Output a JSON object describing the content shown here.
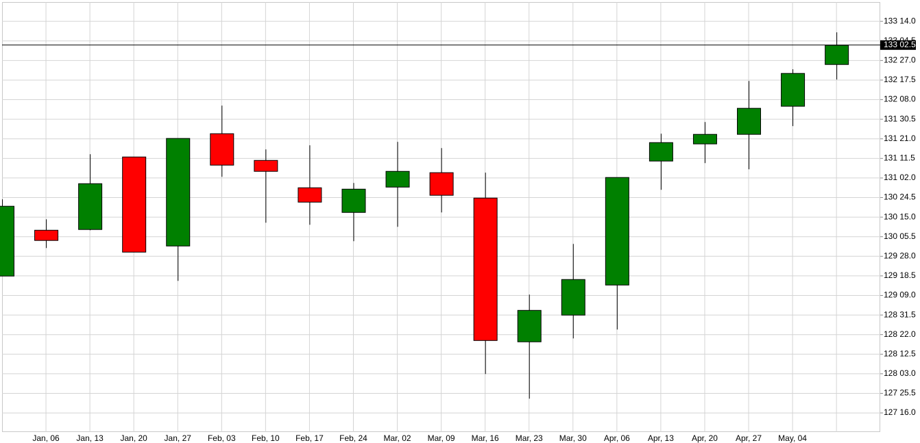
{
  "chart_data": {
    "type": "candlestick",
    "categories": [
      null,
      "Jan, 06",
      "Jan, 13",
      "Jan, 20",
      "Jan, 27",
      "Feb, 03",
      "Feb, 10",
      "Feb, 17",
      "Feb, 24",
      "Mar, 02",
      "Mar, 09",
      "Mar, 16",
      "Mar, 23",
      "Mar, 30",
      "Apr, 06",
      "Apr, 13",
      "Apr, 20",
      "Apr, 27",
      "May, 04",
      null
    ],
    "open": [
      129.575,
      130.27,
      130.281,
      131.381,
      130.031,
      131.734,
      131.329,
      130.914,
      130.54,
      130.924,
      131.143,
      130.758,
      128.578,
      128.983,
      129.439,
      131.319,
      131.579,
      131.724,
      132.15,
      132.783
    ],
    "high": [
      130.738,
      130.436,
      131.423,
      131.381,
      131.662,
      132.16,
      131.496,
      131.558,
      130.987,
      131.61,
      131.516,
      131.143,
      129.294,
      130.063,
      131.07,
      131.734,
      131.911,
      132.534,
      132.711,
      133.271
    ],
    "low": [
      129.575,
      130.0,
      130.27,
      129.938,
      129.502,
      131.08,
      130.384,
      130.353,
      130.104,
      130.322,
      130.54,
      128.09,
      127.716,
      128.63,
      128.765,
      130.883,
      131.288,
      131.194,
      131.849,
      132.555
    ],
    "close": [
      130.634,
      130.115,
      130.976,
      129.938,
      131.662,
      131.257,
      131.163,
      130.696,
      130.893,
      131.163,
      130.8,
      128.598,
      129.055,
      129.523,
      131.07,
      131.599,
      131.724,
      132.119,
      132.648,
      133.074
    ],
    "up_color": "#008000",
    "down_color": "#ff0000",
    "ylim": [
      127.21,
      133.73
    ],
    "yticks": [
      {
        "value": 133.4375,
        "label": "133 14.0"
      },
      {
        "value": 133.140625,
        "label": "133 04.5"
      },
      {
        "value": 132.84375,
        "label": "132 27.0"
      },
      {
        "value": 132.546875,
        "label": "132 17.5"
      },
      {
        "value": 132.25,
        "label": "132 08.0"
      },
      {
        "value": 131.953125,
        "label": "131 30.5"
      },
      {
        "value": 131.65625,
        "label": "131 21.0"
      },
      {
        "value": 131.359375,
        "label": "131 11.5"
      },
      {
        "value": 131.0625,
        "label": "131 02.0"
      },
      {
        "value": 130.765625,
        "label": "130 24.5"
      },
      {
        "value": 130.46875,
        "label": "130 15.0"
      },
      {
        "value": 130.171875,
        "label": "130 05.5"
      },
      {
        "value": 129.875,
        "label": "129 28.0"
      },
      {
        "value": 129.578125,
        "label": "129 18.5"
      },
      {
        "value": 129.28125,
        "label": "129 09.0"
      },
      {
        "value": 128.984375,
        "label": "128 31.5"
      },
      {
        "value": 128.6875,
        "label": "128 22.0"
      },
      {
        "value": 128.390625,
        "label": "128 12.5"
      },
      {
        "value": 128.09375,
        "label": "128 03.0"
      },
      {
        "value": 127.796875,
        "label": "127 25.5"
      },
      {
        "value": 127.5,
        "label": "127 16.0"
      }
    ],
    "current_price": {
      "value": 133.078125,
      "label": "133 02.5"
    },
    "grid": true
  }
}
